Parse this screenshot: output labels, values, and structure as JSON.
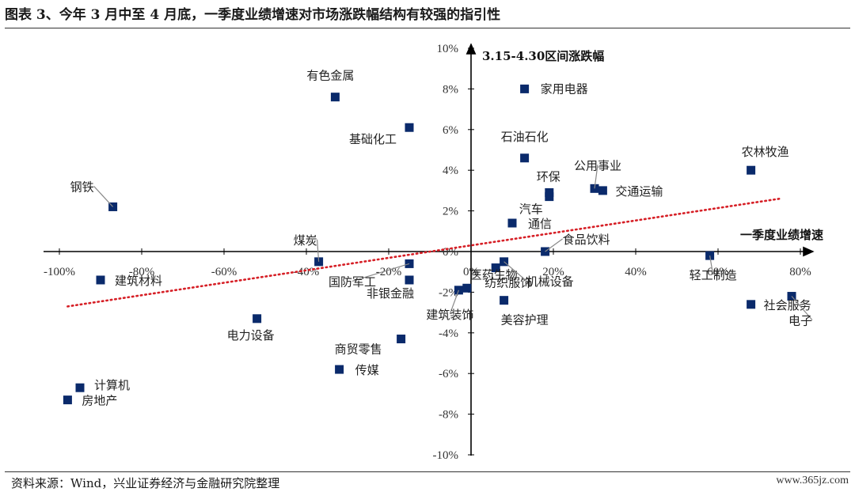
{
  "header": {
    "title": "图表 3、今年 3 月中至 4 月底，一季度业绩增速对市场涨跌幅结构有较强的指引性"
  },
  "footer": {
    "source": "资料来源：Wind，兴业证券经济与金融研究院整理",
    "watermark": "www.365jz.com"
  },
  "colors": {
    "marker": "#0a2a6b",
    "trendline": "#d61f26",
    "axis": "#000000",
    "leader": "#888888"
  },
  "chart_data": {
    "type": "scatter",
    "xlabel": "一季度业绩增速",
    "ylabel": "3.15-4.30区间涨跌幅",
    "xlim": [
      -100,
      80
    ],
    "ylim": [
      -10,
      10
    ],
    "x_ticks": [
      "-100%",
      "-80%",
      "-60%",
      "-40%",
      "-20%",
      "0%",
      "20%",
      "40%",
      "60%",
      "80%"
    ],
    "y_ticks": [
      "10%",
      "8%",
      "6%",
      "4%",
      "2%",
      "0%",
      "-2%",
      "-4%",
      "-6%",
      "-8%",
      "-10%"
    ],
    "trendline": {
      "style": "dotted",
      "x": [
        -98,
        75
      ],
      "y": [
        -2.7,
        2.6
      ]
    },
    "points": [
      {
        "name": "有色金属",
        "x": -33,
        "y": 7.6
      },
      {
        "name": "基础化工",
        "x": -15,
        "y": 6.1
      },
      {
        "name": "钢铁",
        "x": -87,
        "y": 2.2
      },
      {
        "name": "煤炭",
        "x": -37,
        "y": -0.5
      },
      {
        "name": "建筑材料",
        "x": -90,
        "y": -1.4
      },
      {
        "name": "电力设备",
        "x": -52,
        "y": -3.3
      },
      {
        "name": "计算机",
        "x": -95,
        "y": -6.7
      },
      {
        "name": "房地产",
        "x": -98,
        "y": -7.3
      },
      {
        "name": "商贸零售",
        "x": -17,
        "y": -4.3
      },
      {
        "name": "传媒",
        "x": -32,
        "y": -5.8
      },
      {
        "name": "国防军工",
        "x": -15,
        "y": -0.6
      },
      {
        "name": "非银金融",
        "x": -15,
        "y": -1.4
      },
      {
        "name": "建筑装饰",
        "x": -3,
        "y": -1.9
      },
      {
        "name": "医药生物",
        "x": -1,
        "y": -1.8
      },
      {
        "name": "纺织服饰",
        "x": 6,
        "y": -0.8
      },
      {
        "name": "机械设备",
        "x": 8,
        "y": -0.5
      },
      {
        "name": "美容护理",
        "x": 8,
        "y": -2.4
      },
      {
        "name": "家用电器",
        "x": 13,
        "y": 8.0
      },
      {
        "name": "石油石化",
        "x": 13,
        "y": 4.6
      },
      {
        "name": "环保",
        "x": 19,
        "y": 2.7
      },
      {
        "name": "汽车",
        "x": 19,
        "y": 2.9
      },
      {
        "name": "通信",
        "x": 10,
        "y": 1.4
      },
      {
        "name": "食品饮料",
        "x": 18,
        "y": 0.0
      },
      {
        "name": "公用事业",
        "x": 30,
        "y": 3.1
      },
      {
        "name": "交通运输",
        "x": 32,
        "y": 3.0
      },
      {
        "name": "农林牧渔",
        "x": 68,
        "y": 4.0
      },
      {
        "name": "轻工制造",
        "x": 58,
        "y": -0.2
      },
      {
        "name": "社会服务",
        "x": 68,
        "y": -2.6
      },
      {
        "name": "电子",
        "x": 88,
        "y": -2.2
      }
    ]
  }
}
